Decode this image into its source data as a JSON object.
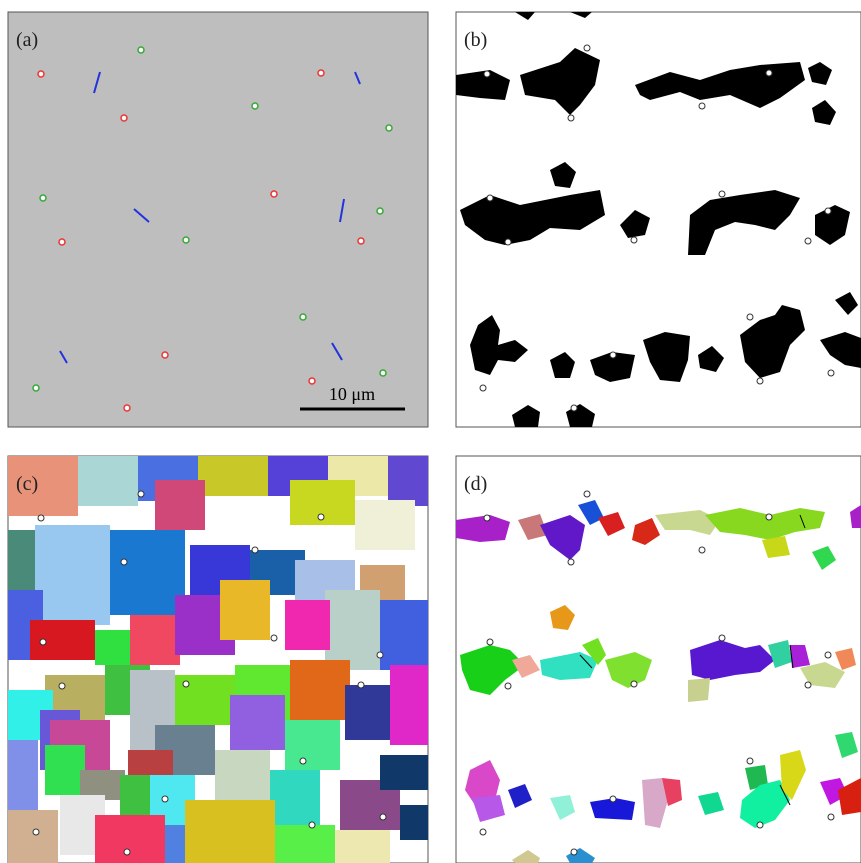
{
  "panels": [
    {
      "label": "(a)"
    },
    {
      "label": "(b)"
    },
    {
      "label": "(c)"
    },
    {
      "label": "(d)"
    }
  ],
  "scale_bar": {
    "label": "10 μm"
  }
}
